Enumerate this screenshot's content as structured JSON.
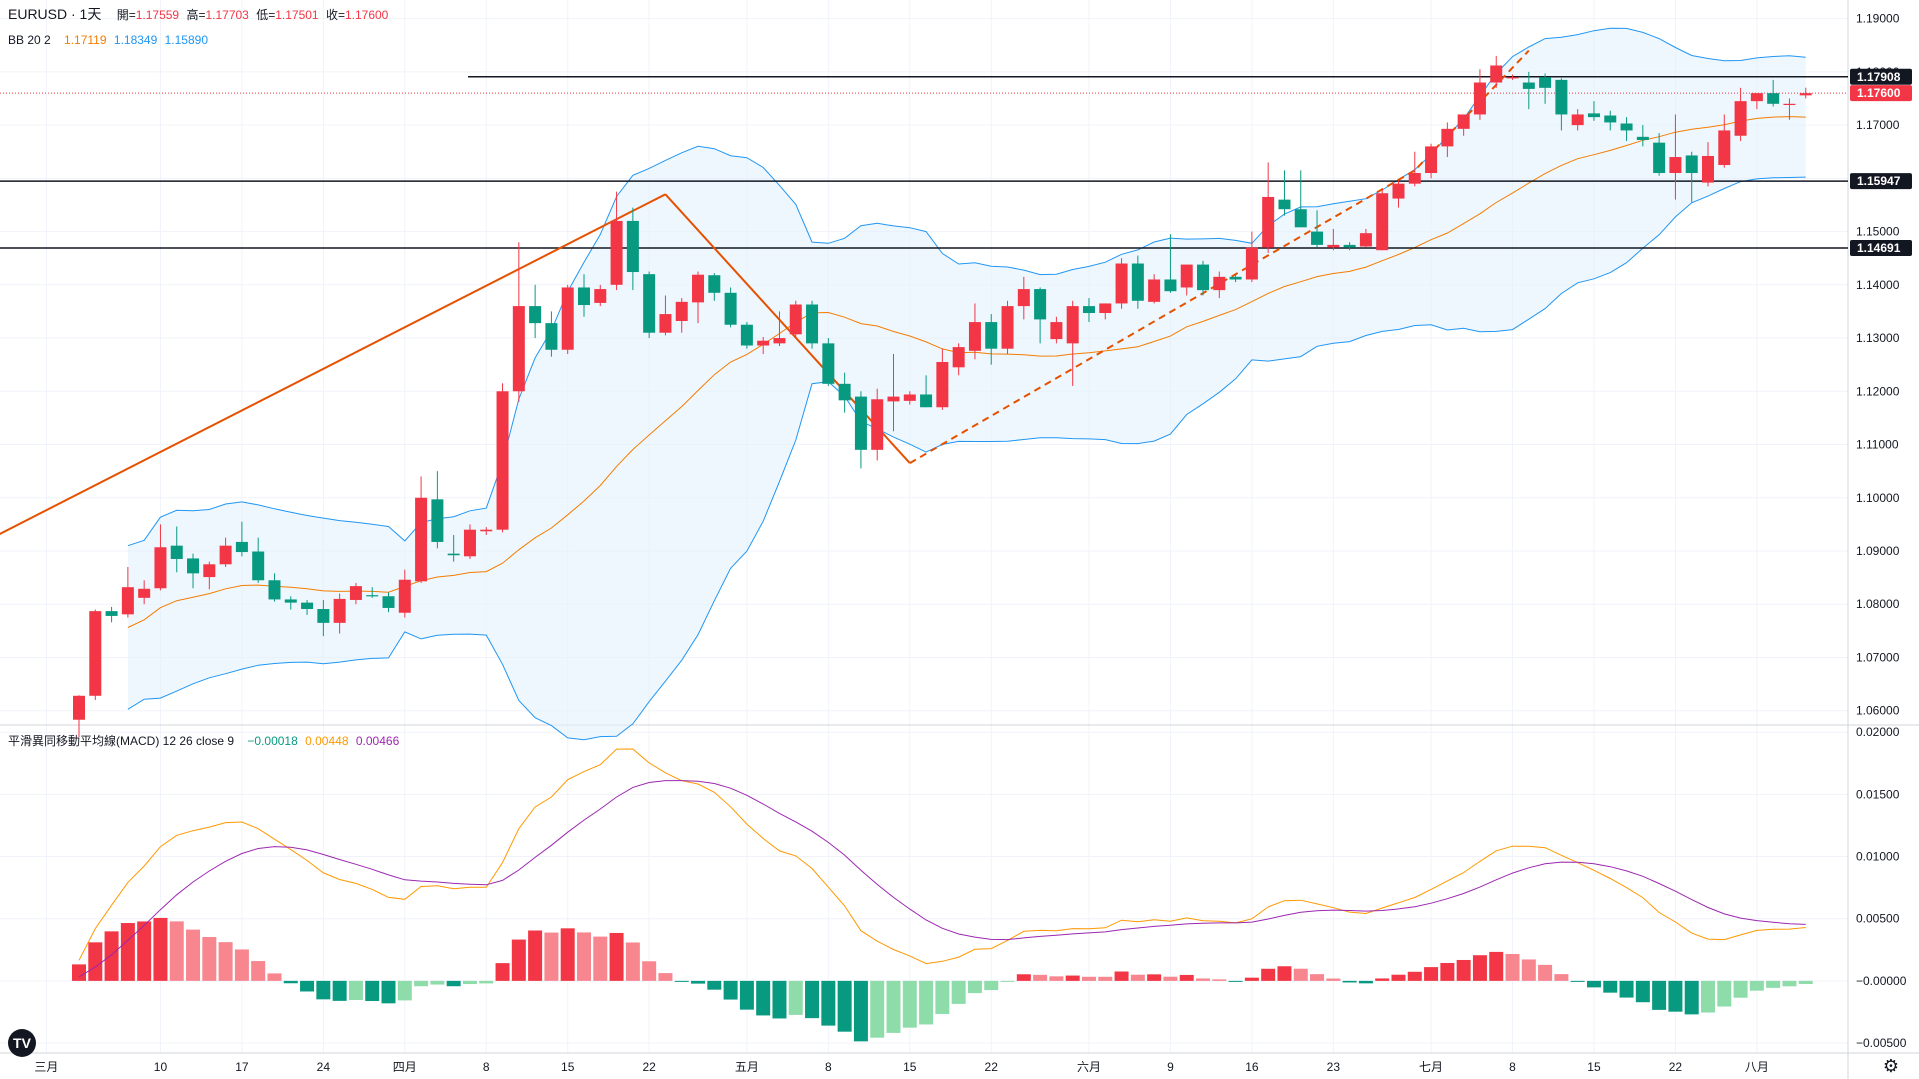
{
  "header": {
    "symbol": "EURUSD · 1天",
    "open_label": "開=",
    "open": "1.17559",
    "high_label": "高=",
    "high": "1.17703",
    "low_label": "低=",
    "low": "1.17501",
    "close_label": "收=",
    "close": "1.17600"
  },
  "bb_legend": {
    "name": "BB 20 2",
    "middle": "1.17119",
    "upper": "1.18349",
    "lower": "1.15890"
  },
  "macd_legend": {
    "name": "平滑異同移動平均線(MACD) 12 26 close 9",
    "hist": "−0.00018",
    "macd": "0.00448",
    "signal": "0.00466"
  },
  "colors": {
    "up": "#f23645",
    "down": "#089981",
    "bb_basis": "#f57c00",
    "bb_band": "#2196f3",
    "bb_fill": "#e3f2fd",
    "macd_line": "#ff9800",
    "signal_line": "#9c27b0",
    "hist_up_strong": "#f23645",
    "hist_up_weak": "#f7868f",
    "hist_down_strong": "#089981",
    "hist_down_weak": "#8fdcab",
    "trend": "#e65100"
  },
  "price_labels": [
    {
      "name": "resistance-1",
      "value": "1.17908",
      "style": "dark"
    },
    {
      "name": "last-price",
      "value": "1.17600",
      "style": "red"
    },
    {
      "name": "support-1",
      "value": "1.15947",
      "style": "dark"
    },
    {
      "name": "support-2",
      "value": "1.14691",
      "style": "dark"
    }
  ],
  "chart_data": [
    {
      "type": "candlestick",
      "title": "EURUSD · 1天",
      "x_ticks": [
        "三月",
        "10",
        "17",
        "24",
        "四月",
        "8",
        "15",
        "22",
        "五月",
        "8",
        "15",
        "22",
        "六月",
        "9",
        "16",
        "23",
        "七月",
        "8",
        "15",
        "22",
        "八月"
      ],
      "y_ticks": [
        "1.19000",
        "1.18000",
        "1.17000",
        "1.16000",
        "1.15000",
        "1.14000",
        "1.13000",
        "1.12000",
        "1.11000",
        "1.10000",
        "1.09000",
        "1.08000",
        "1.07000",
        "1.06000"
      ],
      "ylim": [
        1.0575,
        1.1935
      ],
      "horizontal_lines": [
        1.17908,
        1.15947,
        1.14691
      ],
      "last_price": 1.176,
      "candles": [
        [
          1.0583,
          1.0629,
          1.055,
          1.0628
        ],
        [
          1.0628,
          1.079,
          1.062,
          1.0787
        ],
        [
          1.0787,
          1.0795,
          1.0766,
          1.0778
        ],
        [
          1.0781,
          1.087,
          1.0775,
          1.0832
        ],
        [
          1.0812,
          1.0845,
          1.08,
          1.0829
        ],
        [
          1.083,
          1.095,
          1.0826,
          1.0907
        ],
        [
          1.091,
          1.0946,
          1.086,
          1.0885
        ],
        [
          1.0886,
          1.0895,
          1.083,
          1.0858
        ],
        [
          1.0851,
          1.088,
          1.0828,
          1.0875
        ],
        [
          1.0875,
          1.0925,
          1.087,
          1.091
        ],
        [
          1.0917,
          1.0955,
          1.089,
          1.0898
        ],
        [
          1.0899,
          1.0925,
          1.084,
          1.0845
        ],
        [
          1.0845,
          1.0858,
          1.0805,
          1.0809
        ],
        [
          1.0809,
          1.0815,
          1.079,
          1.0803
        ],
        [
          1.0803,
          1.0808,
          1.078,
          1.0791
        ],
        [
          1.0791,
          1.0808,
          1.074,
          1.0765
        ],
        [
          1.0765,
          1.082,
          1.0745,
          1.081
        ],
        [
          1.0808,
          1.084,
          1.08,
          1.0834
        ],
        [
          1.0817,
          1.0832,
          1.0812,
          1.0815
        ],
        [
          1.0815,
          1.0822,
          1.0785,
          1.0793
        ],
        [
          1.0784,
          1.0865,
          1.0775,
          1.0846
        ],
        [
          1.0843,
          1.104,
          1.084,
          1.1
        ],
        [
          1.0997,
          1.105,
          1.0905,
          1.0917
        ],
        [
          1.0895,
          1.093,
          1.088,
          1.0892
        ],
        [
          1.089,
          1.095,
          1.0885,
          1.094
        ],
        [
          1.0937,
          1.0945,
          1.093,
          1.094
        ],
        [
          1.094,
          1.1215,
          1.0935,
          1.12
        ],
        [
          1.12,
          1.148,
          1.118,
          1.136
        ],
        [
          1.136,
          1.14,
          1.13,
          1.1328
        ],
        [
          1.1328,
          1.135,
          1.1265,
          1.1278
        ],
        [
          1.1278,
          1.14,
          1.127,
          1.1395
        ],
        [
          1.1395,
          1.142,
          1.134,
          1.1362
        ],
        [
          1.1366,
          1.14,
          1.136,
          1.1392
        ],
        [
          1.14,
          1.1575,
          1.139,
          1.152
        ],
        [
          1.152,
          1.1545,
          1.139,
          1.1424
        ],
        [
          1.142,
          1.1425,
          1.13,
          1.131
        ],
        [
          1.131,
          1.138,
          1.1305,
          1.1345
        ],
        [
          1.1332,
          1.1375,
          1.131,
          1.1368
        ],
        [
          1.1367,
          1.1425,
          1.1328,
          1.1419
        ],
        [
          1.1418,
          1.1422,
          1.137,
          1.1385
        ],
        [
          1.1385,
          1.1395,
          1.132,
          1.1325
        ],
        [
          1.1325,
          1.133,
          1.128,
          1.1286
        ],
        [
          1.1286,
          1.1302,
          1.127,
          1.1295
        ],
        [
          1.129,
          1.135,
          1.1285,
          1.13
        ],
        [
          1.1307,
          1.137,
          1.13,
          1.1363
        ],
        [
          1.1363,
          1.137,
          1.128,
          1.129
        ],
        [
          1.129,
          1.13,
          1.121,
          1.1214
        ],
        [
          1.1214,
          1.1235,
          1.116,
          1.1183
        ],
        [
          1.119,
          1.12,
          1.1055,
          1.109
        ],
        [
          1.109,
          1.1205,
          1.107,
          1.1185
        ],
        [
          1.1181,
          1.127,
          1.1125,
          1.119
        ],
        [
          1.1182,
          1.12,
          1.1175,
          1.1194
        ],
        [
          1.1194,
          1.123,
          1.117,
          1.117
        ],
        [
          1.117,
          1.128,
          1.1165,
          1.1255
        ],
        [
          1.1245,
          1.129,
          1.123,
          1.1283
        ],
        [
          1.1276,
          1.1365,
          1.126,
          1.133
        ],
        [
          1.133,
          1.1345,
          1.125,
          1.128
        ],
        [
          1.128,
          1.137,
          1.127,
          1.136
        ],
        [
          1.136,
          1.1415,
          1.1335,
          1.1392
        ],
        [
          1.1392,
          1.1395,
          1.129,
          1.1335
        ],
        [
          1.1298,
          1.134,
          1.129,
          1.133
        ],
        [
          1.129,
          1.137,
          1.121,
          1.136
        ],
        [
          1.136,
          1.1375,
          1.133,
          1.1347
        ],
        [
          1.1347,
          1.1365,
          1.1335,
          1.1365
        ],
        [
          1.1365,
          1.145,
          1.1355,
          1.144
        ],
        [
          1.144,
          1.1455,
          1.1355,
          1.137
        ],
        [
          1.1368,
          1.142,
          1.1365,
          1.141
        ],
        [
          1.141,
          1.1495,
          1.1385,
          1.1388
        ],
        [
          1.1395,
          1.1435,
          1.138,
          1.1438
        ],
        [
          1.1438,
          1.1445,
          1.138,
          1.139
        ],
        [
          1.139,
          1.1425,
          1.1375,
          1.1415
        ],
        [
          1.1415,
          1.142,
          1.1405,
          1.141
        ],
        [
          1.141,
          1.15,
          1.1405,
          1.147
        ],
        [
          1.147,
          1.163,
          1.146,
          1.1565
        ],
        [
          1.156,
          1.1615,
          1.153,
          1.1542
        ],
        [
          1.1542,
          1.1615,
          1.151,
          1.1508
        ],
        [
          1.15,
          1.154,
          1.147,
          1.1475
        ],
        [
          1.147,
          1.1505,
          1.1465,
          1.1475
        ],
        [
          1.1475,
          1.148,
          1.1465,
          1.147
        ],
        [
          1.1472,
          1.1505,
          1.147,
          1.1497
        ],
        [
          1.1465,
          1.158,
          1.1465,
          1.1572
        ],
        [
          1.1562,
          1.1595,
          1.1545,
          1.159
        ],
        [
          1.159,
          1.165,
          1.1585,
          1.161
        ],
        [
          1.161,
          1.1665,
          1.16,
          1.166
        ],
        [
          1.166,
          1.1705,
          1.164,
          1.1693
        ],
        [
          1.1693,
          1.172,
          1.168,
          1.172
        ],
        [
          1.172,
          1.1805,
          1.171,
          1.178
        ],
        [
          1.178,
          1.183,
          1.177,
          1.1812
        ],
        [
          1.179,
          1.1795,
          1.1785,
          1.179
        ],
        [
          1.178,
          1.18,
          1.173,
          1.1768
        ],
        [
          1.179,
          1.1797,
          1.174,
          1.177
        ],
        [
          1.1785,
          1.1788,
          1.169,
          1.172
        ],
        [
          1.17,
          1.173,
          1.169,
          1.172
        ],
        [
          1.1722,
          1.1745,
          1.1708,
          1.1715
        ],
        [
          1.1718,
          1.1727,
          1.169,
          1.1705
        ],
        [
          1.1703,
          1.1715,
          1.167,
          1.169
        ],
        [
          1.1678,
          1.17,
          1.166,
          1.1672
        ],
        [
          1.1667,
          1.1685,
          1.1605,
          1.161
        ],
        [
          1.161,
          1.172,
          1.156,
          1.164
        ],
        [
          1.1643,
          1.165,
          1.1555,
          1.161
        ],
        [
          1.1592,
          1.1668,
          1.1585,
          1.1642
        ],
        [
          1.1625,
          1.172,
          1.162,
          1.169
        ],
        [
          1.168,
          1.177,
          1.167,
          1.1745
        ],
        [
          1.1745,
          1.176,
          1.173,
          1.176
        ],
        [
          1.176,
          1.1785,
          1.1735,
          1.174
        ],
        [
          1.1738,
          1.175,
          1.171,
          1.174
        ],
        [
          1.17559,
          1.17703,
          1.17501,
          1.176
        ]
      ],
      "bollinger": {
        "length": 20,
        "mult": 2,
        "middle": 1.17119,
        "upper": 1.18349,
        "lower": 1.1589
      },
      "trendlines": [
        {
          "name": "solid-up",
          "points": [
            [
              -13,
              1.0805
            ],
            [
              36,
              1.157
            ]
          ],
          "style": "solid"
        },
        {
          "name": "solid-down",
          "points": [
            [
              36,
              1.157
            ],
            [
              51,
              1.1065
            ]
          ],
          "style": "solid"
        },
        {
          "name": "dashed-up",
          "points": [
            [
              51,
              1.1065
            ],
            [
              82,
              1.1615
            ],
            [
              89,
              1.184
            ]
          ],
          "style": "dashed"
        }
      ]
    },
    {
      "type": "macd",
      "title": "平滑異同移動平均線(MACD) 12 26 close 9",
      "params": {
        "fast": 12,
        "slow": 26,
        "source": "close",
        "signal": 9
      },
      "y_ticks": [
        "0.02000",
        "0.01500",
        "0.01000",
        "0.00500",
        "−0.00000",
        "−0.00500"
      ],
      "ylim": [
        -0.0058,
        0.0205
      ],
      "last_values": {
        "histogram": -0.00018,
        "macd": 0.00448,
        "signal": 0.00466
      }
    }
  ]
}
